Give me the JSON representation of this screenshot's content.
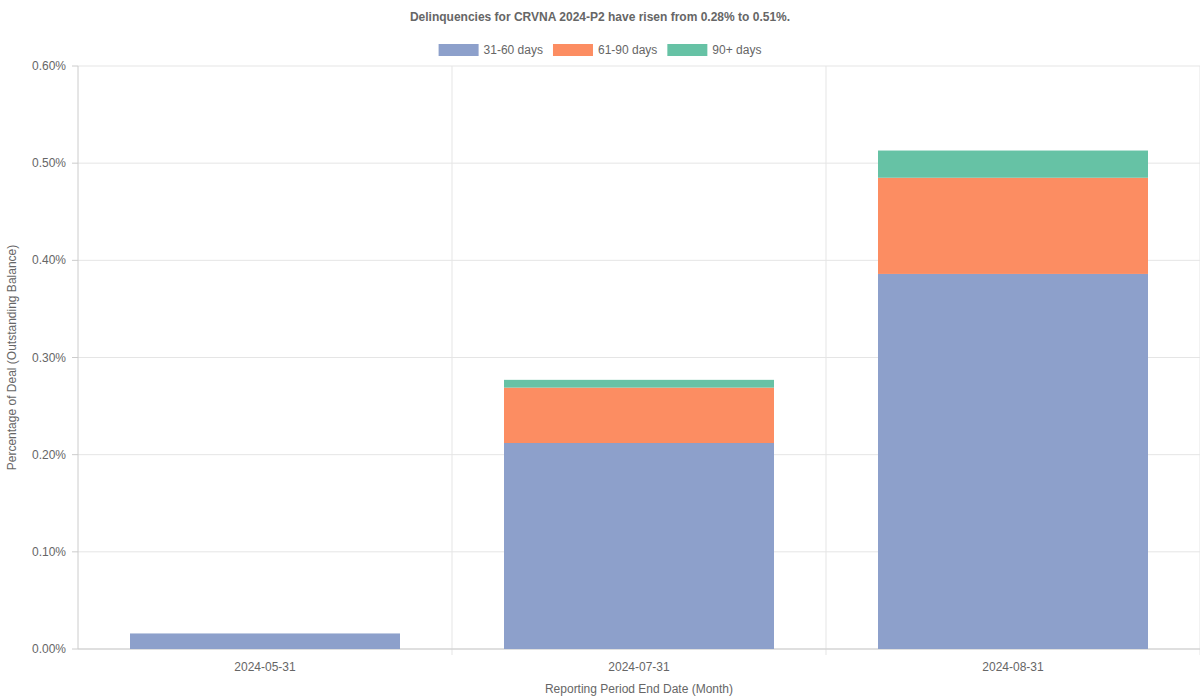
{
  "chart_data": {
    "type": "bar",
    "title": "Delinquencies for CRVNA 2024-P2 have risen from 0.28% to 0.51%.",
    "x_label": "Reporting Period End Date (Month)",
    "y_label": "Percentage of Deal (Outstanding Balance)",
    "categories": [
      "2024-05-31",
      "2024-07-31",
      "2024-08-31"
    ],
    "series": [
      {
        "name": "31-60 days",
        "color": "#8da0cb",
        "values": [
          0.016,
          0.212,
          0.386
        ]
      },
      {
        "name": "61-90 days",
        "color": "#fc8d62",
        "values": [
          0,
          0.057,
          0.099
        ]
      },
      {
        "name": "90+ days",
        "color": "#66c2a5",
        "values": [
          0,
          0.008,
          0.028
        ]
      }
    ],
    "ylim": [
      0,
      0.6
    ],
    "yticks": [
      {
        "value": 0,
        "label": "0.00%"
      },
      {
        "value": 0.1,
        "label": "0.10%"
      },
      {
        "value": 0.2,
        "label": "0.20%"
      },
      {
        "value": 0.3,
        "label": "0.30%"
      },
      {
        "value": 0.4,
        "label": "0.40%"
      },
      {
        "value": 0.5,
        "label": "0.50%"
      },
      {
        "value": 0.6,
        "label": "0.60%"
      }
    ],
    "stacked": true,
    "grid": true,
    "legend": "top"
  }
}
